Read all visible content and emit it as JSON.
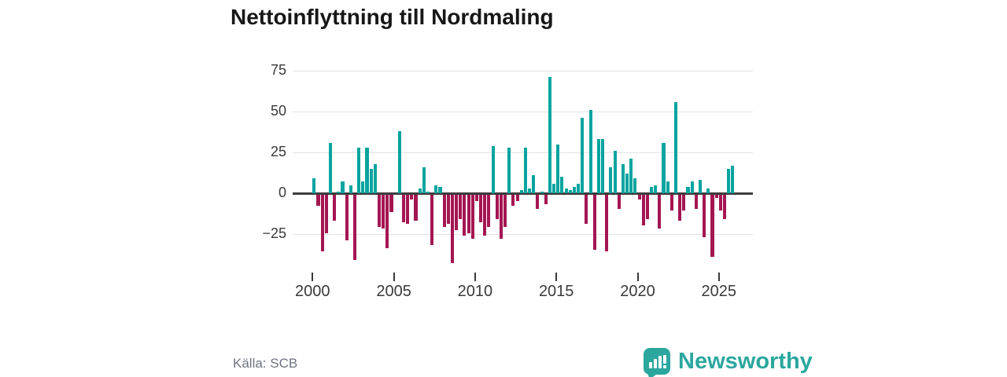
{
  "title": "Nettoinflyttning till Nordmaling",
  "source": "Källa: SCB",
  "logo": {
    "text": "Newsworthy"
  },
  "chart_data": {
    "type": "bar",
    "title": "Nettoinflyttning till Nordmaling",
    "frequency": "quarterly",
    "period_start": "2000 Q1",
    "period_end": "2025 Q4",
    "values": [
      9,
      -7,
      -35,
      -24,
      31,
      -16,
      1,
      7,
      -28,
      5,
      -40,
      28,
      7,
      28,
      15,
      18,
      -20,
      -21,
      -33,
      -11,
      0,
      38,
      -17,
      -18,
      -3,
      -16,
      3,
      16,
      1,
      -31,
      5,
      4,
      -20,
      -18,
      -42,
      -22,
      -15,
      -25,
      -24,
      -27,
      -4,
      -17,
      -25,
      -20,
      29,
      -15,
      -27,
      -20,
      28,
      -7,
      -4,
      2,
      28,
      3,
      11,
      -9,
      1,
      -6,
      71,
      6,
      30,
      10,
      3,
      2,
      4,
      6,
      46,
      -18,
      51,
      -34,
      33,
      33,
      -35,
      16,
      26,
      -9,
      18,
      12,
      21,
      9,
      -3,
      -19,
      -15,
      4,
      5,
      -21,
      31,
      7,
      -10,
      56,
      -16,
      -10,
      4,
      7,
      -9,
      8,
      -26,
      3,
      -38,
      -2,
      -10,
      -15,
      15,
      17
    ],
    "x_tick_labels": [
      "2000",
      "2005",
      "2010",
      "2015",
      "2020",
      "2025"
    ],
    "y_tick_labels": [
      "75",
      "50",
      "25",
      "0",
      "−25"
    ],
    "y_ticks": [
      75,
      50,
      25,
      0,
      -25
    ],
    "ylim": [
      -45,
      80
    ],
    "grid": true,
    "legend": false,
    "colors": {
      "positive": "#08a4a0",
      "negative": "#a41652",
      "axis": "#3d3d3d",
      "gridline": "#e3e3e3"
    }
  }
}
